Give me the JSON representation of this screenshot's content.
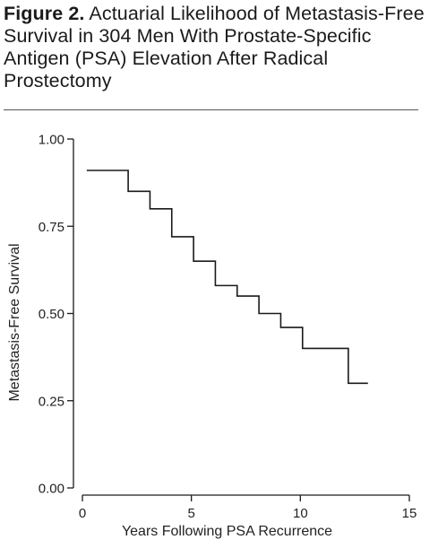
{
  "figure": {
    "label": "Figure 2.",
    "caption": "Actuarial Likelihood of Metastasis-Free Survival in 304 Men With Prostate-Specific Antigen (PSA) Elevation After Radical Prostectomy"
  },
  "chart_data": {
    "type": "line",
    "step": true,
    "title": "",
    "xlabel": "Years Following PSA Recurrence",
    "ylabel": "Metastasis-Free Survival",
    "xlim": [
      0,
      15
    ],
    "ylim": [
      0,
      1
    ],
    "xticks": [
      0,
      5,
      10,
      15
    ],
    "xtick_labels": [
      "0",
      "5",
      "10",
      "15"
    ],
    "yticks": [
      0,
      0.25,
      0.5,
      0.75,
      1.0
    ],
    "ytick_labels": [
      "0.00",
      "0.25",
      "0.50",
      "0.75",
      "1.00"
    ],
    "grid": false,
    "legend": "none",
    "line_color": "#1a1a1a",
    "series": [
      {
        "x": [
          0.2,
          2.1,
          3.1,
          4.1,
          5.1,
          6.1,
          7.1,
          8.1,
          9.1,
          10.1,
          12.2,
          13.1
        ],
        "y": [
          0.91,
          0.85,
          0.8,
          0.72,
          0.65,
          0.58,
          0.55,
          0.5,
          0.46,
          0.4,
          0.3,
          0.3
        ]
      }
    ]
  }
}
